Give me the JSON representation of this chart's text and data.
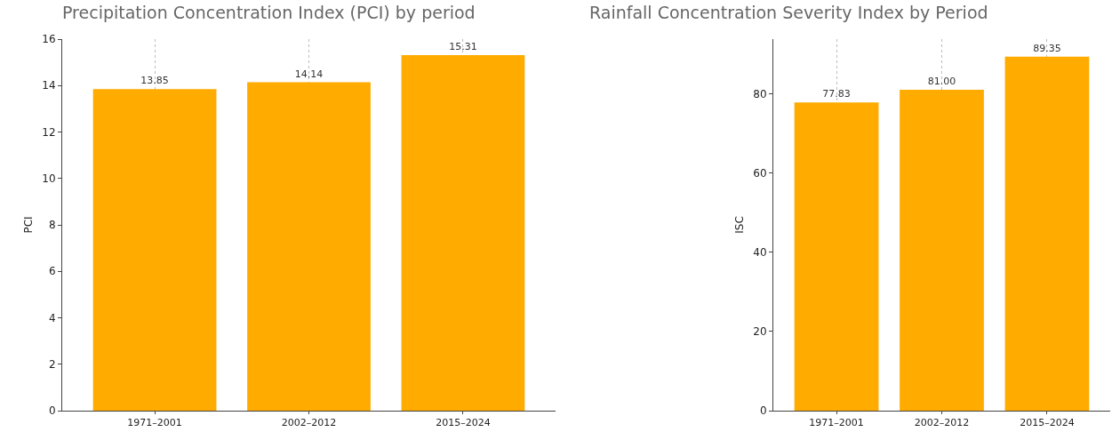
{
  "chart_data": [
    {
      "type": "bar",
      "title": "Precipitation Concentration Index (PCI) by period",
      "ylabel": "PCI",
      "categories": [
        "1971–2001",
        "2002–2012",
        "2015–2024"
      ],
      "values": [
        13.85,
        14.14,
        15.31
      ],
      "value_labels": [
        "13.85",
        "14.14",
        "15.31"
      ],
      "color": "#ffab00",
      "ylim": [
        0,
        16
      ],
      "yticks": [
        0,
        2,
        4,
        6,
        8,
        10,
        12,
        14,
        16
      ],
      "grid": "x"
    },
    {
      "type": "bar",
      "title": "Rainfall Concentration Severity Index by Period",
      "ylabel": "ISC",
      "categories": [
        "1971–2001",
        "2002–2012",
        "2015–2024"
      ],
      "values": [
        77.83,
        81.0,
        89.35
      ],
      "value_labels": [
        "77.83",
        "81.00",
        "89.35"
      ],
      "color": "#ffab00",
      "ylim": [
        0,
        93.8
      ],
      "yticks": [
        0,
        20,
        40,
        60,
        80
      ],
      "grid": "x"
    }
  ]
}
